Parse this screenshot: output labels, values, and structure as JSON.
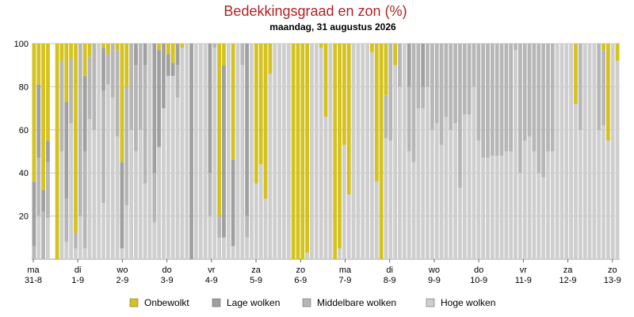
{
  "title": "Bedekkingsgraad en zon (%)",
  "subtitle": "maandag, 31 augustus 2026",
  "colors": {
    "onbewolkt": "#d4c21e",
    "lage": "#a0a0a0",
    "middelbaar": "#b6b6b6",
    "hoge": "#cecece",
    "grid": "#c8c8c8",
    "title": "#b22222"
  },
  "chart_data": {
    "type": "bar",
    "stacked": true,
    "ylim": [
      0,
      100
    ],
    "yticks": [
      "20",
      "40",
      "60",
      "80",
      "100"
    ],
    "legend": {
      "position": "bottom",
      "items": [
        "Onbewolkt",
        "Lage wolken",
        "Middelbare wolken",
        "Hoge wolken"
      ]
    },
    "xlabels": [
      {
        "day": "ma",
        "date": "31-8"
      },
      {
        "day": "di",
        "date": "1-9"
      },
      {
        "day": "wo",
        "date": "2-9"
      },
      {
        "day": "do",
        "date": "3-9"
      },
      {
        "day": "vr",
        "date": "4-9"
      },
      {
        "day": "za",
        "date": "5-9"
      },
      {
        "day": "zo",
        "date": "6-9"
      },
      {
        "day": "ma",
        "date": "7-9"
      },
      {
        "day": "di",
        "date": "8-9"
      },
      {
        "day": "wo",
        "date": "9-9"
      },
      {
        "day": "do",
        "date": "10-9"
      },
      {
        "day": "vr",
        "date": "11-9"
      },
      {
        "day": "za",
        "date": "12-9"
      },
      {
        "day": "zo",
        "date": "13-9"
      }
    ],
    "series": [
      {
        "name": "Onbewolkt",
        "values": [
          64,
          19,
          68,
          45,
          0,
          100,
          8,
          27,
          7,
          88,
          0,
          15,
          6,
          0,
          0,
          2,
          5,
          0,
          3,
          55,
          20,
          0,
          0,
          0,
          0,
          0,
          0,
          3,
          0,
          5,
          9,
          0,
          2,
          0,
          0,
          0,
          0,
          0,
          0,
          0,
          80,
          10,
          0,
          54,
          0,
          0,
          0,
          0,
          65,
          56,
          72,
          14,
          0,
          0,
          0,
          0,
          100,
          100,
          100,
          97,
          0,
          0,
          2,
          34,
          0,
          100,
          95,
          47,
          70,
          0,
          0,
          0,
          0,
          4,
          64,
          100,
          24,
          0,
          10,
          0,
          0,
          0,
          0,
          0,
          0,
          0,
          0,
          0,
          0,
          0,
          0,
          0,
          0,
          0,
          0,
          0,
          0,
          0,
          0,
          0,
          0,
          0,
          0,
          0,
          0,
          0,
          0,
          0,
          0,
          0,
          0,
          0,
          0,
          0,
          0,
          0,
          0,
          28,
          0,
          0,
          0,
          0,
          0,
          3,
          45,
          0,
          8
        ]
      },
      {
        "name": "Lage wolken",
        "values": [
          30,
          34,
          10,
          10,
          0,
          0,
          0,
          45,
          0,
          0,
          0,
          35,
          0,
          0,
          0,
          20,
          0,
          0,
          0,
          40,
          0,
          0,
          10,
          0,
          10,
          0,
          60,
          45,
          30,
          10,
          6,
          10,
          0,
          0,
          100,
          0,
          0,
          0,
          60,
          0,
          0,
          80,
          0,
          40,
          0,
          0,
          80,
          0,
          0,
          0,
          0,
          0,
          0,
          0,
          0,
          0,
          0,
          0,
          0,
          0,
          0,
          0,
          0,
          0,
          0,
          0,
          0,
          0,
          0,
          0,
          0,
          0,
          0,
          0,
          0,
          0,
          0,
          0,
          0,
          0,
          0,
          20,
          0,
          0,
          20,
          0,
          0,
          0,
          0,
          0,
          0,
          0,
          0,
          0,
          0,
          0,
          0,
          0,
          0,
          0,
          0,
          0,
          0,
          0,
          0,
          0,
          0,
          0,
          0,
          0,
          0,
          0,
          0,
          0,
          0,
          0,
          0,
          0,
          0,
          0,
          0,
          0,
          0,
          0,
          0,
          0,
          0
        ]
      },
      {
        "name": "Middelbare wolken",
        "values": [
          6,
          27,
          22,
          26,
          0,
          0,
          42,
          20,
          30,
          7,
          80,
          45,
          29,
          40,
          0,
          52,
          14,
          25,
          40,
          0,
          55,
          40,
          40,
          40,
          55,
          0,
          23,
          0,
          0,
          0,
          0,
          15,
          0,
          0,
          0,
          0,
          0,
          0,
          20,
          2,
          10,
          0,
          0,
          0,
          0,
          10,
          10,
          0,
          0,
          0,
          0,
          0,
          0,
          0,
          0,
          0,
          0,
          0,
          0,
          0,
          0,
          0,
          0,
          0,
          0,
          0,
          0,
          0,
          0,
          0,
          0,
          0,
          0,
          0,
          0,
          0,
          20,
          45,
          0,
          20,
          0,
          30,
          55,
          30,
          10,
          20,
          40,
          37,
          47,
          34,
          40,
          37,
          67,
          33,
          33,
          20,
          45,
          53,
          53,
          52,
          52,
          52,
          50,
          50,
          3,
          60,
          45,
          43,
          50,
          60,
          62,
          50,
          50,
          0,
          0,
          0,
          0,
          0,
          40,
          0,
          0,
          0,
          40,
          35,
          0,
          0,
          0
        ]
      },
      {
        "name": "Hoge wolken",
        "values": [
          0,
          20,
          0,
          19,
          0,
          0,
          50,
          8,
          63,
          5,
          20,
          5,
          65,
          60,
          100,
          26,
          81,
          75,
          57,
          5,
          25,
          60,
          50,
          60,
          35,
          100,
          17,
          52,
          70,
          85,
          85,
          75,
          98,
          100,
          0,
          100,
          100,
          100,
          20,
          98,
          10,
          10,
          100,
          6,
          100,
          90,
          10,
          100,
          35,
          44,
          28,
          86,
          100,
          100,
          100,
          100,
          0,
          0,
          0,
          3,
          100,
          100,
          98,
          66,
          100,
          0,
          5,
          53,
          30,
          100,
          100,
          100,
          100,
          96,
          36,
          0,
          56,
          55,
          90,
          80,
          100,
          50,
          45,
          70,
          70,
          80,
          60,
          63,
          53,
          66,
          60,
          63,
          33,
          67,
          67,
          80,
          55,
          47,
          47,
          48,
          48,
          48,
          50,
          50,
          97,
          40,
          55,
          57,
          50,
          40,
          38,
          50,
          50,
          100,
          100,
          100,
          100,
          72,
          60,
          100,
          100,
          100,
          60,
          62,
          55,
          100,
          92
        ]
      }
    ]
  }
}
